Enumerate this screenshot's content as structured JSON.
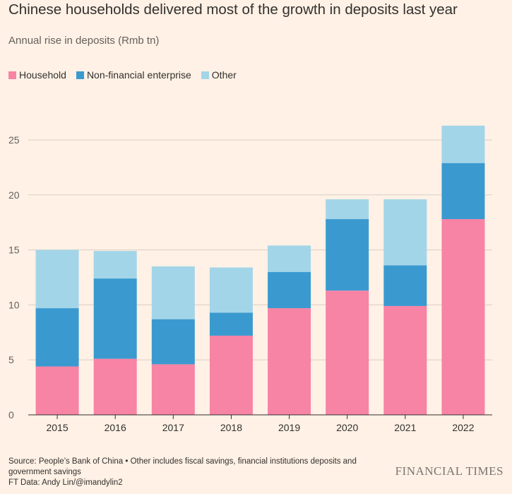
{
  "title": "Chinese households delivered most of the growth in deposits last year",
  "subtitle": "Annual rise in deposits (Rmb tn)",
  "source": "Source: People’s Bank of China • Other includes fiscal savings, financial institutions deposits and government savings",
  "credit": "FT Data: Andy Lin/@imandylin2",
  "logo": "FINANCIAL TIMES",
  "colors": {
    "household": "#F783A5",
    "non_financial": "#3A9AD0",
    "other": "#A3D5E8",
    "grid": "#D9CEC3",
    "axis": "#33302E",
    "background": "#FFF1E5"
  },
  "chart_data": {
    "type": "bar",
    "stacked": true,
    "categories": [
      "2015",
      "2016",
      "2017",
      "2018",
      "2019",
      "2020",
      "2021",
      "2022"
    ],
    "series": [
      {
        "name": "Household",
        "color": "#F783A5",
        "values": [
          4.4,
          5.1,
          4.6,
          7.2,
          9.7,
          11.3,
          9.9,
          17.8
        ]
      },
      {
        "name": "Non-financial enterprise",
        "color": "#3A9AD0",
        "values": [
          5.3,
          7.3,
          4.1,
          2.1,
          3.3,
          6.5,
          3.7,
          5.1
        ]
      },
      {
        "name": "Other",
        "color": "#A3D5E8",
        "values": [
          5.3,
          2.5,
          4.8,
          4.1,
          2.4,
          1.8,
          6.0,
          3.4
        ]
      }
    ],
    "yticks": [
      0,
      5,
      10,
      15,
      20,
      25
    ],
    "ylim": [
      0,
      28
    ],
    "grid": true,
    "legend_position": "top-left",
    "xlabel": "",
    "ylabel": ""
  }
}
